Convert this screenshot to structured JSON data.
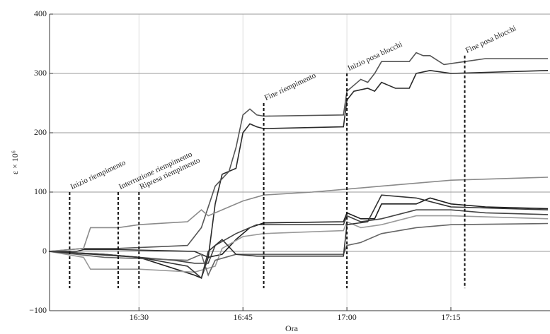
{
  "chart_data": {
    "type": "line",
    "x_label": "Ora",
    "y_label": "ε × 10⁶",
    "xlim": [
      17.1,
      89.3
    ],
    "ylim": [
      -100,
      400
    ],
    "xticks": [
      {
        "value": 30,
        "label": "16:30"
      },
      {
        "value": 45,
        "label": "16:45"
      },
      {
        "value": 60,
        "label": "17:00"
      },
      {
        "value": 75,
        "label": "17:15"
      }
    ],
    "yticks": [
      {
        "value": -100,
        "label": "−100"
      },
      0,
      100,
      200,
      300,
      400
    ],
    "grid": true,
    "series": [
      {
        "color": "#2a2a2a",
        "x": [
          17,
          21,
          22,
          27,
          38,
          40,
          41,
          42,
          44,
          45,
          46,
          47,
          48,
          59.5,
          60,
          61,
          63,
          64,
          65,
          66,
          67,
          69,
          70,
          72,
          75,
          89
        ],
        "values": [
          0,
          0,
          3,
          3,
          0,
          -10,
          80,
          130,
          140,
          200,
          215,
          210,
          207,
          210,
          255,
          270,
          275,
          270,
          285,
          280,
          275,
          275,
          300,
          305,
          300,
          305
        ]
      },
      {
        "color": "#555555",
        "x": [
          17,
          22,
          27,
          37,
          39,
          41,
          43,
          44,
          45,
          46,
          47,
          48,
          59.5,
          60,
          61,
          62,
          63,
          64,
          65,
          67,
          69,
          70,
          71,
          72,
          74,
          77,
          80,
          89
        ],
        "values": [
          0,
          5,
          5,
          10,
          40,
          110,
          135,
          175,
          230,
          240,
          230,
          228,
          230,
          270,
          280,
          290,
          285,
          300,
          320,
          320,
          320,
          335,
          330,
          330,
          315,
          320,
          325,
          325
        ]
      },
      {
        "color": "#8a8a8a",
        "x": [
          17,
          22,
          23,
          27,
          30,
          37,
          39,
          40,
          43,
          45,
          48,
          55,
          60,
          65,
          75,
          89
        ],
        "values": [
          0,
          5,
          40,
          40,
          45,
          50,
          70,
          60,
          75,
          85,
          95,
          100,
          105,
          110,
          120,
          125
        ]
      },
      {
        "color": "#1e1e1e",
        "x": [
          17,
          25,
          30,
          38,
          39,
          40,
          42,
          44,
          46,
          48,
          59.5,
          60,
          62,
          64,
          65,
          70,
          72,
          75,
          80,
          89
        ],
        "values": [
          0,
          -5,
          -10,
          -40,
          -45,
          -10,
          -5,
          20,
          40,
          48,
          50,
          65,
          55,
          55,
          80,
          80,
          90,
          80,
          75,
          72
        ]
      },
      {
        "color": "#444444",
        "x": [
          17,
          25,
          35,
          38,
          40,
          41,
          44,
          47,
          59.5,
          60,
          62,
          65,
          70,
          75,
          80,
          89
        ],
        "values": [
          0,
          -5,
          -15,
          -20,
          -20,
          10,
          30,
          45,
          45,
          60,
          50,
          55,
          70,
          70,
          65,
          62
        ]
      },
      {
        "color": "#9a9a9a",
        "x": [
          17,
          22,
          23,
          30,
          38,
          41,
          42,
          45,
          48,
          59.5,
          60,
          62,
          65,
          70,
          75,
          89
        ],
        "values": [
          0,
          -10,
          -30,
          -30,
          -35,
          -25,
          5,
          25,
          30,
          35,
          50,
          40,
          45,
          60,
          60,
          55
        ]
      },
      {
        "color": "#666666",
        "x": [
          17,
          25,
          37,
          39,
          40,
          41,
          44,
          48,
          59.5,
          60,
          62,
          65,
          70,
          75,
          89
        ],
        "values": [
          0,
          -10,
          -15,
          -5,
          -40,
          -15,
          -5,
          -5,
          -5,
          10,
          15,
          30,
          40,
          45,
          47
        ]
      },
      {
        "color": "#333333",
        "x": [
          17,
          30,
          37,
          38,
          39,
          40,
          42,
          44,
          47,
          59.5,
          60,
          63,
          65,
          70,
          75,
          89
        ],
        "values": [
          0,
          -10,
          -25,
          -35,
          -45,
          0,
          20,
          -5,
          -8,
          -8,
          45,
          50,
          95,
          90,
          75,
          70
        ]
      }
    ],
    "annotations": [
      {
        "label": "Inizio riempimento",
        "x": 20,
        "y": [
          100,
          -62
        ]
      },
      {
        "label": "Interruzione riempimento",
        "x": 27,
        "y": [
          100,
          -62
        ]
      },
      {
        "label": "Ripresa riempimento",
        "x": 30,
        "y": [
          100,
          -62
        ]
      },
      {
        "label": "Fine riempimento",
        "x": 48,
        "y": [
          250,
          -62
        ]
      },
      {
        "label": "Inizio posa blocchi",
        "x": 60,
        "y": [
          300,
          -62
        ]
      },
      {
        "label": "Fine posa blocchi",
        "x": 77,
        "y": [
          330,
          -62
        ]
      }
    ]
  }
}
